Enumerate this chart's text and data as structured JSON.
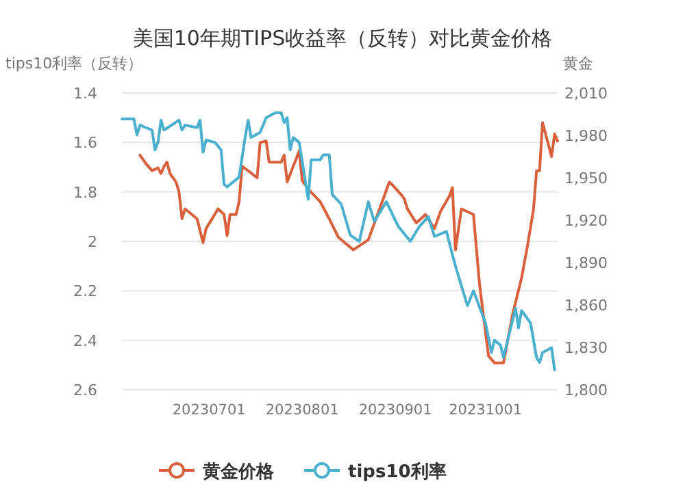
{
  "chart_data": {
    "type": "line",
    "title": "美国10年期TIPS收益率（反转）对比黄金价格",
    "ylabel": "tips10利率（反转）",
    "y2label": "黄金",
    "xlim": [
      "2023-06-02",
      "2023-10-25"
    ],
    "xticks": [
      {
        "value": "2023-07-01",
        "label": "20230701"
      },
      {
        "value": "2023-08-01",
        "label": "20230801"
      },
      {
        "value": "2023-09-01",
        "label": "20230901"
      },
      {
        "value": "2023-10-01",
        "label": "20231001"
      }
    ],
    "ylim": [
      2.6,
      1.4
    ],
    "yticks": [
      1.4,
      1.6,
      1.8,
      2,
      2.2,
      2.4,
      2.6
    ],
    "y2lim": [
      1800,
      2010
    ],
    "y2ticks": [
      {
        "value": 1800,
        "label": "1,800"
      },
      {
        "value": 1830,
        "label": "1,830"
      },
      {
        "value": 1860,
        "label": "1,860"
      },
      {
        "value": 1890,
        "label": "1,890"
      },
      {
        "value": 1920,
        "label": "1,920"
      },
      {
        "value": 1950,
        "label": "1,950"
      },
      {
        "value": 1980,
        "label": "1,980"
      },
      {
        "value": 2010,
        "label": "2,010"
      }
    ],
    "grid": "y",
    "legend": "bottom",
    "marker": "none",
    "line_style": "solid",
    "series": [
      {
        "name": "黄金价格",
        "color": "#d9603b",
        "axis": "y2",
        "x": [
          "2023-06-08",
          "2023-06-10",
          "2023-06-12",
          "2023-06-13",
          "2023-06-14",
          "2023-06-15",
          "2023-06-16",
          "2023-06-17",
          "2023-06-18",
          "2023-06-20",
          "2023-06-21",
          "2023-06-22",
          "2023-06-23",
          "2023-06-27",
          "2023-06-29",
          "2023-06-30",
          "2023-07-04",
          "2023-07-06",
          "2023-07-07",
          "2023-07-08",
          "2023-07-10",
          "2023-07-11",
          "2023-07-12",
          "2023-07-14",
          "2023-07-17",
          "2023-07-18",
          "2023-07-20",
          "2023-07-21",
          "2023-07-25",
          "2023-07-26",
          "2023-07-27",
          "2023-07-31",
          "2023-08-01",
          "2023-08-03",
          "2023-08-07",
          "2023-08-10",
          "2023-08-13",
          "2023-08-18",
          "2023-08-23",
          "2023-08-30",
          "2023-08-31",
          "2023-09-03",
          "2023-09-04",
          "2023-09-05",
          "2023-09-08",
          "2023-09-11",
          "2023-09-14",
          "2023-09-16",
          "2023-09-19",
          "2023-09-20",
          "2023-09-21",
          "2023-09-23",
          "2023-09-27",
          "2023-09-29",
          "2023-10-02",
          "2023-10-04",
          "2023-10-07",
          "2023-10-10",
          "2023-10-13",
          "2023-10-15",
          "2023-10-17",
          "2023-10-18",
          "2023-10-19",
          "2023-10-20",
          "2023-10-23",
          "2023-10-24",
          "2023-10-25"
        ],
        "values": [
          1966,
          1960,
          1955,
          1956,
          1957,
          1953,
          1958,
          1961,
          1953,
          1947,
          1940,
          1921,
          1928,
          1921,
          1904,
          1914,
          1928,
          1924,
          1909,
          1924,
          1924,
          1933,
          1958,
          1955,
          1950,
          1975,
          1976,
          1961,
          1961,
          1966,
          1947,
          1969,
          1948,
          1942,
          1933,
          1921,
          1908,
          1899,
          1906,
          1947,
          1945,
          1938,
          1935,
          1928,
          1918,
          1924,
          1914,
          1926,
          1937,
          1943,
          1899,
          1928,
          1924,
          1875,
          1824,
          1819,
          1819,
          1853,
          1879,
          1902,
          1928,
          1955,
          1955,
          1989,
          1965,
          1981,
          1976
        ]
      },
      {
        "name": "tips10利率",
        "color": "#4ab0cf",
        "x": [
          "2023-06-02",
          "2023-06-06",
          "2023-06-07",
          "2023-06-08",
          "2023-06-12",
          "2023-06-13",
          "2023-06-14",
          "2023-06-15",
          "2023-06-16",
          "2023-06-21",
          "2023-06-22",
          "2023-06-23",
          "2023-06-27",
          "2023-06-28",
          "2023-06-29",
          "2023-06-30",
          "2023-07-03",
          "2023-07-05",
          "2023-07-06",
          "2023-07-07",
          "2023-07-11",
          "2023-07-13",
          "2023-07-14",
          "2023-07-15",
          "2023-07-18",
          "2023-07-20",
          "2023-07-23",
          "2023-07-25",
          "2023-07-26",
          "2023-07-27",
          "2023-07-28",
          "2023-07-29",
          "2023-07-31",
          "2023-08-03",
          "2023-08-04",
          "2023-08-07",
          "2023-08-08",
          "2023-08-10",
          "2023-08-11",
          "2023-08-14",
          "2023-08-17",
          "2023-08-20",
          "2023-08-23",
          "2023-08-25",
          "2023-08-29",
          "2023-09-02",
          "2023-09-06",
          "2023-09-09",
          "2023-09-12",
          "2023-09-14",
          "2023-09-18",
          "2023-09-21",
          "2023-09-25",
          "2023-09-27",
          "2023-10-01",
          "2023-10-03",
          "2023-10-04",
          "2023-10-06",
          "2023-10-07",
          "2023-10-11",
          "2023-10-12",
          "2023-10-13",
          "2023-10-16",
          "2023-10-18",
          "2023-10-19",
          "2023-10-20",
          "2023-10-23",
          "2023-10-24"
        ],
        "values": [
          1.505,
          1.505,
          1.57,
          1.53,
          1.55,
          1.63,
          1.6,
          1.51,
          1.55,
          1.51,
          1.55,
          1.53,
          1.54,
          1.51,
          1.64,
          1.59,
          1.6,
          1.63,
          1.77,
          1.78,
          1.74,
          1.58,
          1.51,
          1.58,
          1.56,
          1.5,
          1.48,
          1.48,
          1.52,
          1.5,
          1.63,
          1.58,
          1.6,
          1.83,
          1.67,
          1.67,
          1.65,
          1.65,
          1.81,
          1.85,
          1.975,
          2.0,
          1.84,
          1.92,
          1.84,
          1.94,
          2.0,
          1.94,
          1.9,
          1.98,
          1.96,
          2.1,
          2.26,
          2.2,
          2.33,
          2.45,
          2.4,
          2.42,
          2.47,
          2.27,
          2.35,
          2.28,
          2.33,
          2.47,
          2.49,
          2.45,
          2.43,
          2.52
        ]
      }
    ]
  }
}
